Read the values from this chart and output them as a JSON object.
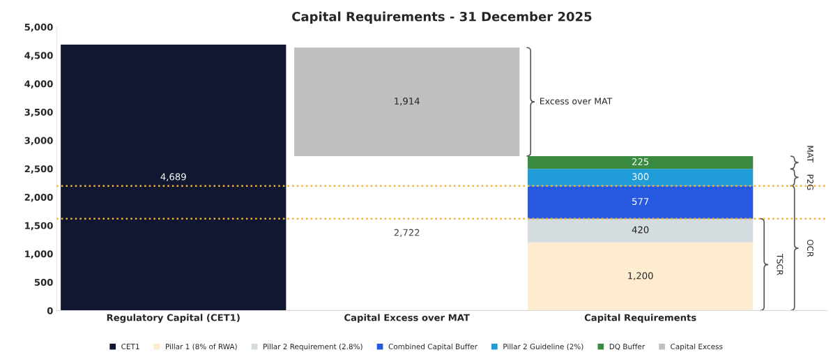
{
  "chart_data": {
    "type": "bar",
    "stacked": true,
    "title": "Capital Requirements - 31 December 2025",
    "categories": [
      "Regulatory Capital (CET1)",
      "Capital Excess over MAT",
      "Capital Requirements"
    ],
    "series": [
      {
        "name": "CET1",
        "color": "#111731",
        "values": [
          4689,
          null,
          null
        ],
        "value_labels": [
          "4,689",
          null,
          null
        ]
      },
      {
        "name": "Pillar 1 (8% of RWA)",
        "color": "#fdeccf",
        "values": [
          null,
          null,
          1200
        ],
        "value_labels": [
          null,
          null,
          "1,200"
        ]
      },
      {
        "name": "Pillar 2 Requirement (2.8%)",
        "color": "#d4dce0",
        "values": [
          null,
          null,
          420
        ],
        "value_labels": [
          null,
          null,
          "420"
        ]
      },
      {
        "name": "Combined Capital Buffer",
        "color": "#2659e0",
        "values": [
          null,
          null,
          577
        ],
        "value_labels": [
          null,
          null,
          "577"
        ]
      },
      {
        "name": "Pillar 2 Guideline (2%)",
        "color": "#209dd8",
        "values": [
          null,
          null,
          300
        ],
        "value_labels": [
          null,
          null,
          "300"
        ]
      },
      {
        "name": "DQ Buffer",
        "color": "#3a8a41",
        "values": [
          null,
          null,
          225
        ],
        "value_labels": [
          null,
          null,
          "225"
        ]
      },
      {
        "name": "Capital Excess",
        "color": "#bfbfbf",
        "base": [
          null,
          2722,
          null
        ],
        "values": [
          null,
          1914,
          null
        ],
        "value_labels": [
          null,
          "1,914",
          null
        ]
      }
    ],
    "ylim": [
      0,
      5000
    ],
    "yticks": [
      {
        "value": 0,
        "label": "0"
      },
      {
        "value": 500,
        "label": "500"
      },
      {
        "value": 1000,
        "label": "1,000"
      },
      {
        "value": 1500,
        "label": "1,500"
      },
      {
        "value": 2000,
        "label": "2,000"
      },
      {
        "value": 2500,
        "label": "2,500"
      },
      {
        "value": 3000,
        "label": "3,000"
      },
      {
        "value": 3500,
        "label": "3,500"
      },
      {
        "value": 4000,
        "label": "4,000"
      },
      {
        "value": 4500,
        "label": "4,500"
      },
      {
        "value": 5000,
        "label": "5,000"
      }
    ],
    "ref_lines": [
      {
        "axis": "y",
        "value": 2197,
        "color": "#f5b335",
        "line_style": "dotted"
      },
      {
        "axis": "y",
        "value": 1620,
        "color": "#f5b335",
        "line_style": "dotted"
      }
    ],
    "annotations": [
      "2,722",
      "Excess over MAT",
      "MAT",
      "P2G",
      "OCR",
      "TSCR"
    ],
    "grid": false,
    "legend": "bottom"
  }
}
